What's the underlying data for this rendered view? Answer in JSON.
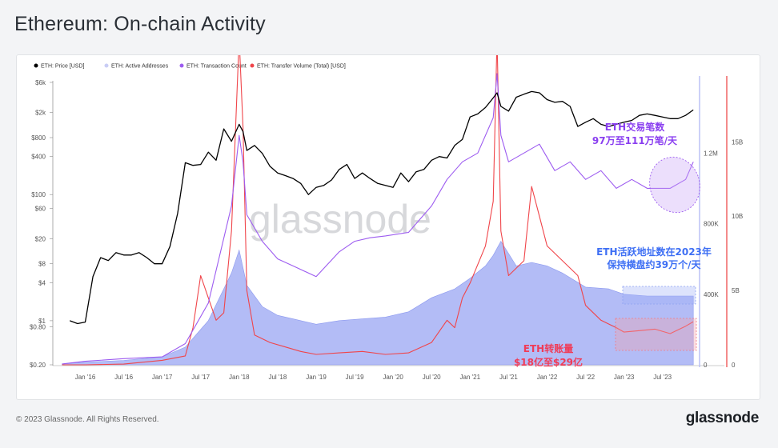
{
  "page": {
    "title": "Ethereum: On-chain Activity",
    "copyright": "© 2023 Glassnode. All Rights Reserved.",
    "logo": "glassnode",
    "watermark": "glassnode"
  },
  "chart_data": {
    "type": "line",
    "legend": [
      {
        "name": "ETH: Price [USD]",
        "color": "#000000"
      },
      {
        "name": "ETH: Active Addresses",
        "color": "#c9cdf5"
      },
      {
        "name": "ETH: Transaction Count",
        "color": "#9d5cf0"
      },
      {
        "name": "ETH: Transfer Volume (Total) [USD]",
        "color": "#f0454a"
      }
    ],
    "x_ticks": [
      "Jan '16",
      "Jul '16",
      "Jan '17",
      "Jul '17",
      "Jan '18",
      "Jul '18",
      "Jan '19",
      "Jul '19",
      "Jan '20",
      "Jul '20",
      "Jan '21",
      "Jul '21",
      "Jan '22",
      "Jul '22",
      "Jan '23",
      "Jul '23"
    ],
    "y_left_ticks": [
      "$6k",
      "$2k",
      "$800",
      "$400",
      "$100",
      "$60",
      "$20",
      "$8",
      "$4",
      "$1",
      "$0.80",
      "$0.20"
    ],
    "y_left_scale": "log",
    "y_mid_ticks": [
      "1.2M",
      "800K",
      "400K",
      "0"
    ],
    "y_right_ticks": [
      "15B",
      "10B",
      "5B",
      "0"
    ],
    "series": [
      {
        "name": "ETH: Price [USD]",
        "scale": "log",
        "x": [
          2015.8,
          2015.9,
          2016.0,
          2016.1,
          2016.2,
          2016.3,
          2016.4,
          2016.5,
          2016.6,
          2016.7,
          2016.8,
          2016.9,
          2017.0,
          2017.1,
          2017.2,
          2017.3,
          2017.4,
          2017.5,
          2017.6,
          2017.7,
          2017.8,
          2017.9,
          2018.0,
          2018.05,
          2018.1,
          2018.2,
          2018.3,
          2018.4,
          2018.5,
          2018.6,
          2018.7,
          2018.8,
          2018.9,
          2019.0,
          2019.1,
          2019.2,
          2019.3,
          2019.4,
          2019.5,
          2019.6,
          2019.7,
          2019.8,
          2019.9,
          2020.0,
          2020.1,
          2020.2,
          2020.3,
          2020.4,
          2020.5,
          2020.6,
          2020.7,
          2020.8,
          2020.9,
          2021.0,
          2021.1,
          2021.2,
          2021.3,
          2021.35,
          2021.4,
          2021.5,
          2021.6,
          2021.7,
          2021.8,
          2021.9,
          2022.0,
          2022.1,
          2022.2,
          2022.3,
          2022.4,
          2022.5,
          2022.6,
          2022.7,
          2022.8,
          2022.9,
          2023.0,
          2023.1,
          2023.2,
          2023.3,
          2023.4,
          2023.5,
          2023.6,
          2023.7,
          2023.8,
          2023.9
        ],
        "values": [
          1,
          0.9,
          0.95,
          5,
          10,
          9,
          12,
          11,
          11,
          12,
          10,
          8,
          8,
          15,
          50,
          320,
          290,
          300,
          470,
          350,
          1100,
          700,
          1300,
          1000,
          500,
          600,
          450,
          280,
          220,
          200,
          180,
          150,
          100,
          130,
          140,
          170,
          250,
          300,
          180,
          220,
          180,
          150,
          140,
          130,
          220,
          160,
          230,
          250,
          350,
          400,
          380,
          600,
          750,
          1700,
          1900,
          2400,
          3400,
          4100,
          2500,
          2100,
          3500,
          3900,
          4300,
          4100,
          3200,
          2900,
          3000,
          2500,
          1200,
          1400,
          1600,
          1300,
          1200,
          1300,
          1400,
          1500,
          1800,
          1900,
          1800,
          1700,
          1600,
          1600,
          1800,
          2200
        ]
      },
      {
        "name": "ETH: Active Addresses",
        "scale": "linear",
        "x": [
          2015.7,
          2016.0,
          2016.5,
          2017.0,
          2017.3,
          2017.6,
          2017.9,
          2018.0,
          2018.1,
          2018.3,
          2018.5,
          2018.7,
          2019.0,
          2019.3,
          2019.6,
          2019.9,
          2020.2,
          2020.5,
          2020.8,
          2021.0,
          2021.2,
          2021.3,
          2021.4,
          2021.6,
          2021.8,
          2022.0,
          2022.2,
          2022.5,
          2022.8,
          2023.0,
          2023.3,
          2023.6,
          2023.9
        ],
        "values": [
          5000,
          15000,
          25000,
          45000,
          100000,
          250000,
          520000,
          650000,
          450000,
          330000,
          280000,
          260000,
          230000,
          250000,
          260000,
          270000,
          300000,
          380000,
          430000,
          490000,
          560000,
          620000,
          700000,
          560000,
          580000,
          560000,
          520000,
          440000,
          430000,
          400000,
          390000,
          390000,
          390000
        ]
      },
      {
        "name": "ETH: Transaction Count",
        "scale": "linear",
        "x": [
          2015.7,
          2016.0,
          2016.5,
          2017.0,
          2017.3,
          2017.6,
          2017.9,
          2018.0,
          2018.05,
          2018.1,
          2018.3,
          2018.5,
          2018.7,
          2019.0,
          2019.3,
          2019.5,
          2019.7,
          2019.9,
          2020.2,
          2020.5,
          2020.7,
          2020.9,
          2021.1,
          2021.3,
          2021.35,
          2021.4,
          2021.5,
          2021.7,
          2021.9,
          2022.1,
          2022.3,
          2022.5,
          2022.7,
          2022.9,
          2023.1,
          2023.3,
          2023.6,
          2023.8,
          2023.9
        ],
        "values": [
          5000,
          20000,
          35000,
          45000,
          120000,
          350000,
          900000,
          1300000,
          1150000,
          850000,
          700000,
          600000,
          560000,
          500000,
          640000,
          700000,
          720000,
          730000,
          750000,
          900000,
          1050000,
          1150000,
          1200000,
          1400000,
          1650000,
          1300000,
          1150000,
          1200000,
          1250000,
          1100000,
          1150000,
          1050000,
          1100000,
          1000000,
          1050000,
          1000000,
          1000000,
          1050000,
          1150000
        ]
      },
      {
        "name": "ETH: Transfer Volume (Total) [USD]",
        "scale": "linear",
        "x": [
          2015.7,
          2016.0,
          2016.5,
          2017.0,
          2017.3,
          2017.4,
          2017.5,
          2017.6,
          2017.7,
          2017.8,
          2017.9,
          2018.0,
          2018.05,
          2018.1,
          2018.2,
          2018.4,
          2018.6,
          2018.8,
          2019.0,
          2019.3,
          2019.6,
          2019.9,
          2020.2,
          2020.5,
          2020.7,
          2020.8,
          2020.9,
          2021.0,
          2021.2,
          2021.3,
          2021.35,
          2021.4,
          2021.5,
          2021.7,
          2021.8,
          2021.9,
          2022.0,
          2022.2,
          2022.4,
          2022.5,
          2022.7,
          2022.9,
          2023.0,
          2023.2,
          2023.4,
          2023.6,
          2023.8,
          2023.9
        ],
        "values": [
          0,
          0,
          50000000,
          300000000,
          600000000,
          2500000000,
          6000000000,
          4500000000,
          3000000000,
          3500000000,
          9000000000,
          22000000000,
          16000000000,
          5000000000,
          2000000000,
          1500000000,
          1200000000,
          900000000,
          700000000,
          800000000,
          900000000,
          700000000,
          800000000,
          1500000000,
          3000000000,
          2500000000,
          4500000000,
          5500000000,
          8000000000,
          11000000000,
          22000000000,
          9000000000,
          6000000000,
          7000000000,
          12000000000,
          10000000000,
          8000000000,
          7000000000,
          6000000000,
          4000000000,
          3000000000,
          2500000000,
          2200000000,
          2300000000,
          2400000000,
          2100000000,
          2600000000,
          2900000000
        ]
      }
    ]
  },
  "annotations": {
    "tx": {
      "line1": "ETH交易笔数",
      "line2": "97万至111万笔/天",
      "color": "#8a3ff0"
    },
    "active": {
      "line1": "ETH活跃地址数在2023年",
      "line2": "保持横盘约39万个/天",
      "color": "#3e6ff4"
    },
    "volume": {
      "line1": "ETH转账量",
      "line2": "$18亿至$29亿",
      "color": "#f03b57"
    }
  }
}
